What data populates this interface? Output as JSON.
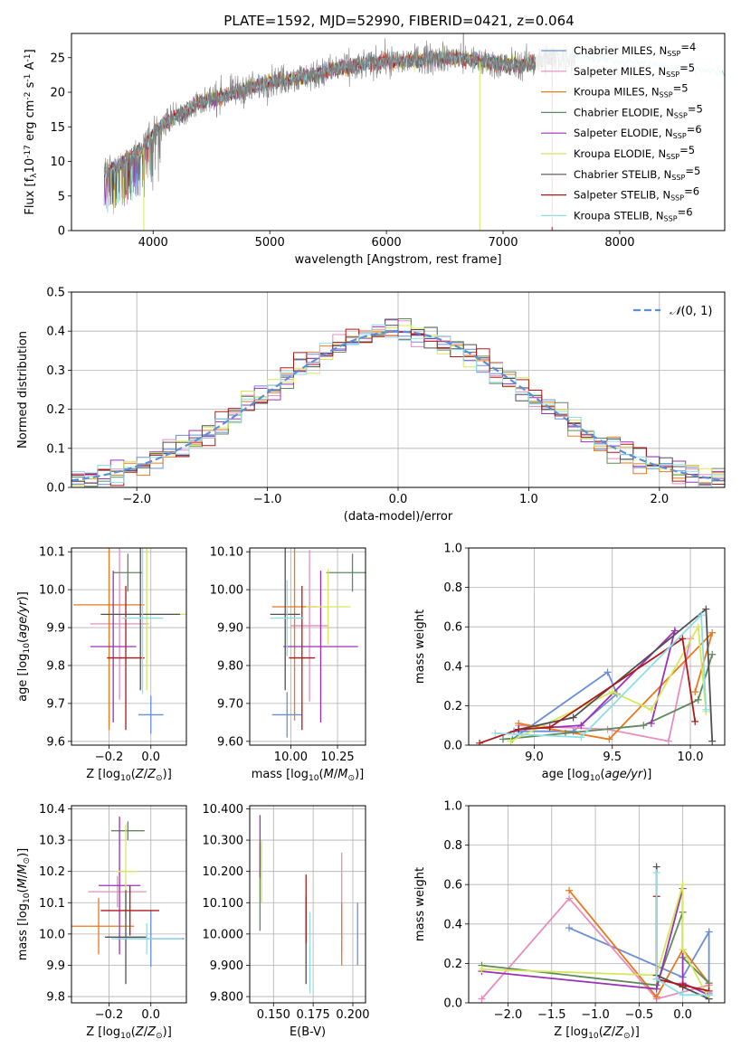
{
  "figure_title": "PLATE=1592, MJD=52990, FIBERID=0421, z=0.064",
  "colors": {
    "chabrier_miles": "#6a8fd8",
    "salpeter_miles": "#e88dbd",
    "kroupa_miles": "#e8791c",
    "chabrier_elodie": "#5c8a5c",
    "salpeter_elodie": "#9b30b8",
    "kroupa_elodie": "#d4e85a",
    "chabrier_stelib": "#505050",
    "salpeter_stelib": "#b01818",
    "kroupa_stelib": "#8fdde5",
    "gaussian": "#5b8fd9"
  },
  "chart_data": [
    {
      "id": "spectrum",
      "type": "line",
      "xlabel": "wavelength [Angstrom, rest frame]",
      "ylabel": "Flux [f$_\\lambda$10$^{-17}$ erg cm$^{-2}$ s$^{-1}$ A$^{-1}$]",
      "xlim": [
        3300,
        8900
      ],
      "ylim": [
        0,
        28.5
      ],
      "xticks": [
        4000,
        5000,
        6000,
        7000,
        8000
      ],
      "yticks": [
        0,
        5,
        10,
        15,
        20,
        25
      ],
      "grid": false,
      "legend_position": "right",
      "legend": [
        {
          "key": "chabrier_miles",
          "label": "Chabrier MILES, N",
          "sub": "SSP",
          "suffix": "=4"
        },
        {
          "key": "salpeter_miles",
          "label": "Salpeter MILES, N",
          "sub": "SSP",
          "suffix": "=5"
        },
        {
          "key": "kroupa_miles",
          "label": "Kroupa MILES, N",
          "sub": "SSP",
          "suffix": "=5"
        },
        {
          "key": "chabrier_elodie",
          "label": "Chabrier ELODIE, N",
          "sub": "SSP",
          "suffix": "=5"
        },
        {
          "key": "salpeter_elodie",
          "label": "Salpeter ELODIE, N",
          "sub": "SSP",
          "suffix": "=6"
        },
        {
          "key": "kroupa_elodie",
          "label": "Kroupa ELODIE, N",
          "sub": "SSP",
          "suffix": "=5"
        },
        {
          "key": "chabrier_stelib",
          "label": "Chabrier STELIB, N",
          "sub": "SSP",
          "suffix": "=5"
        },
        {
          "key": "salpeter_stelib",
          "label": "Salpeter STELIB, N",
          "sub": "SSP",
          "suffix": "=6"
        },
        {
          "key": "kroupa_stelib",
          "label": "Kroupa STELIB, N",
          "sub": "SSP",
          "suffix": "=6"
        }
      ],
      "data_trend": {
        "x": [
          3580,
          3700,
          3800,
          3900,
          4000,
          4100,
          4200,
          4300,
          4400,
          4500,
          4600,
          4700,
          4800,
          4900,
          5000,
          5200,
          5400,
          5600,
          5800,
          6000,
          6200,
          6400,
          6600,
          6800,
          7000,
          7200,
          7400
        ],
        "y": [
          8.5,
          9.5,
          10.5,
          11.5,
          14.0,
          15.5,
          16.5,
          17.5,
          18.5,
          19.0,
          19.5,
          20.0,
          20.5,
          21.0,
          21.5,
          22.0,
          22.5,
          23.5,
          24.0,
          24.5,
          24.5,
          25.0,
          25.0,
          24.5,
          24.0,
          24.0,
          25.0
        ]
      },
      "model_extent": {
        "x": [
          3580,
          8900
        ]
      }
    },
    {
      "id": "residuals",
      "type": "histogram",
      "xlabel": "(data-model)/error",
      "ylabel": "Normed distribution",
      "xlim": [
        -2.5,
        2.5
      ],
      "ylim": [
        0,
        0.5
      ],
      "xticks": [
        -2,
        -1,
        0,
        1,
        2
      ],
      "yticks": [
        0.0,
        0.1,
        0.2,
        0.3,
        0.4,
        0.5
      ],
      "grid": true,
      "legend": [
        {
          "label": "$\\mathcal{N}(0,1)$",
          "key": "gaussian",
          "style": "dashed"
        }
      ],
      "legend_position": "top-right",
      "bin_width": 0.1,
      "gaussian": {
        "mean": 0,
        "sigma": 1
      }
    },
    {
      "id": "age_vs_Z",
      "type": "errorbar",
      "xlabel": "Z [log$_{10}$($Z$/$Z_\\odot$)]",
      "ylabel": "age  [log$_{10}$($age/yr$)]",
      "xlim": [
        -0.38,
        0.17
      ],
      "ylim": [
        9.59,
        10.11
      ],
      "xticks": [
        -0.2,
        0.0
      ],
      "yticks": [
        9.6,
        9.7,
        9.8,
        9.9,
        10.0,
        10.1
      ],
      "grid": true,
      "series": [
        {
          "key": "chabrier_miles",
          "x": 0.0,
          "xerr": 0.06,
          "y": 9.67,
          "yerr": 0.05
        },
        {
          "key": "salpeter_miles",
          "x": -0.15,
          "xerr": 0.14,
          "y": 9.91,
          "yerr": 0.2
        },
        {
          "key": "kroupa_miles",
          "x": -0.2,
          "xerr": 0.17,
          "y": 9.96,
          "yerr": 0.33
        },
        {
          "key": "chabrier_elodie",
          "x": -0.11,
          "xerr": 0.07,
          "y": 10.045,
          "yerr": 0.05
        },
        {
          "key": "salpeter_elodie",
          "x": -0.18,
          "xerr": 0.11,
          "y": 9.85,
          "yerr": 0.2
        },
        {
          "key": "kroupa_elodie",
          "x": -0.02,
          "xerr": 0.19,
          "y": 9.935,
          "yerr": 0.2
        },
        {
          "key": "chabrier_stelib",
          "x": -0.05,
          "xerr": 0.19,
          "y": 9.935,
          "yerr": 0.2
        },
        {
          "key": "salpeter_stelib",
          "x": -0.12,
          "xerr": 0.09,
          "y": 9.82,
          "yerr": 0.19
        },
        {
          "key": "kroupa_stelib",
          "x": -0.04,
          "xerr": 0.1,
          "y": 9.925,
          "yerr": 0.2
        }
      ]
    },
    {
      "id": "age_vs_mass",
      "type": "errorbar",
      "xlabel": "mass [log$_{10}$($M$/$M_\\odot$)]",
      "ylabel": "",
      "xlim": [
        9.78,
        10.4
      ],
      "ylim": [
        9.59,
        10.11
      ],
      "xticks": [
        10.0,
        10.25
      ],
      "yticks": [
        9.6,
        9.7,
        9.8,
        9.9,
        10.0,
        10.1
      ],
      "grid": true,
      "series": [
        {
          "key": "chabrier_miles",
          "x": 9.98,
          "xerr": 0.08,
          "y": 9.67,
          "yerr": 0.06
        },
        {
          "key": "salpeter_miles",
          "x": 10.1,
          "xerr": 0.1,
          "y": 9.905,
          "yerr": 0.2
        },
        {
          "key": "kroupa_miles",
          "x": 10.02,
          "xerr": 0.12,
          "y": 9.955,
          "yerr": 0.3
        },
        {
          "key": "chabrier_elodie",
          "x": 10.33,
          "xerr": 0.14,
          "y": 10.045,
          "yerr": 0.05
        },
        {
          "key": "salpeter_elodie",
          "x": 10.16,
          "xerr": 0.2,
          "y": 9.85,
          "yerr": 0.2
        },
        {
          "key": "kroupa_elodie",
          "x": 10.2,
          "xerr": 0.12,
          "y": 9.955,
          "yerr": 0.1
        },
        {
          "key": "chabrier_stelib",
          "x": 9.97,
          "xerr": 0.08,
          "y": 9.935,
          "yerr": 0.2
        },
        {
          "key": "salpeter_stelib",
          "x": 10.06,
          "xerr": 0.07,
          "y": 9.82,
          "yerr": 0.19
        },
        {
          "key": "kroupa_stelib",
          "x": 9.98,
          "xerr": 0.09,
          "y": 9.925,
          "yerr": 0.1
        }
      ]
    },
    {
      "id": "weight_vs_age",
      "type": "line",
      "xlabel": "age  [log$_{10}$($age/yr$)]",
      "ylabel": "mass weight",
      "xlim": [
        8.58,
        10.22
      ],
      "ylim": [
        0,
        1.0
      ],
      "xticks": [
        9.0,
        9.5,
        10.0
      ],
      "yticks": [
        0.0,
        0.2,
        0.4,
        0.6,
        0.8,
        1.0
      ],
      "grid": true,
      "series": [
        {
          "key": "chabrier_miles",
          "points": [
            [
              8.86,
              0.03
            ],
            [
              9.47,
              0.37
            ],
            [
              9.53,
              0.26
            ],
            [
              9.25,
              0.07
            ],
            [
              8.87,
              0.07
            ]
          ]
        },
        {
          "key": "salpeter_miles",
          "points": [
            [
              8.9,
              0.1
            ],
            [
              9.47,
              0.08
            ],
            [
              9.86,
              0.02
            ],
            [
              10.0,
              0.54
            ]
          ]
        },
        {
          "key": "kroupa_miles",
          "points": [
            [
              8.9,
              0.11
            ],
            [
              9.48,
              0.03
            ],
            [
              10.14,
              0.57
            ],
            [
              10.03,
              0.27
            ]
          ]
        },
        {
          "key": "chabrier_elodie",
          "points": [
            [
              8.8,
              0.03
            ],
            [
              9.2,
              0.06
            ],
            [
              9.7,
              0.1
            ],
            [
              10.05,
              0.23
            ],
            [
              10.14,
              0.46
            ]
          ]
        },
        {
          "key": "salpeter_elodie",
          "points": [
            [
              8.9,
              0.08
            ],
            [
              9.3,
              0.1
            ],
            [
              9.9,
              0.58
            ],
            [
              9.75,
              0.11
            ]
          ]
        },
        {
          "key": "kroupa_elodie",
          "points": [
            [
              8.85,
              0.02
            ],
            [
              9.5,
              0.27
            ],
            [
              9.75,
              0.18
            ],
            [
              10.05,
              0.6
            ],
            [
              10.1,
              0.17
            ]
          ]
        },
        {
          "key": "chabrier_stelib",
          "points": [
            [
              8.9,
              0.08
            ],
            [
              9.25,
              0.14
            ],
            [
              10.1,
              0.69
            ],
            [
              10.14,
              0.02
            ]
          ]
        },
        {
          "key": "salpeter_stelib",
          "points": [
            [
              8.65,
              0.01
            ],
            [
              8.9,
              0.08
            ],
            [
              9.1,
              0.09
            ],
            [
              9.95,
              0.54
            ],
            [
              10.03,
              0.12
            ]
          ]
        },
        {
          "key": "kroupa_stelib",
          "points": [
            [
              8.75,
              0.06
            ],
            [
              9.3,
              0.04
            ],
            [
              10.07,
              0.66
            ],
            [
              10.1,
              0.18
            ]
          ]
        }
      ]
    },
    {
      "id": "mass_vs_Z",
      "type": "errorbar",
      "xlabel": "Z [log$_{10}$($Z$/$Z_\\odot$)]",
      "ylabel": "mass [log$_{10}$($M$/$M_\\odot$)]",
      "xlim": [
        -0.38,
        0.17
      ],
      "ylim": [
        9.78,
        10.41
      ],
      "xticks": [
        -0.2,
        0.0
      ],
      "yticks": [
        9.8,
        9.9,
        10.0,
        10.1,
        10.2,
        10.3,
        10.4
      ],
      "grid": true,
      "series": [
        {
          "key": "chabrier_miles",
          "x": 0.0,
          "xerr": 0.16,
          "y": 9.985,
          "yerr": 0.09
        },
        {
          "key": "salpeter_miles",
          "x": -0.16,
          "xerr": 0.14,
          "y": 10.135,
          "yerr": 0.05
        },
        {
          "key": "kroupa_miles",
          "x": -0.25,
          "xerr": 0.17,
          "y": 10.025,
          "yerr": 0.09
        },
        {
          "key": "chabrier_elodie",
          "x": -0.11,
          "xerr": 0.08,
          "y": 10.33,
          "yerr": 0.03
        },
        {
          "key": "salpeter_elodie",
          "x": -0.15,
          "xerr": 0.1,
          "y": 10.155,
          "yerr": 0.22
        },
        {
          "key": "kroupa_elodie",
          "x": -0.12,
          "xerr": 0.05,
          "y": 10.2,
          "yerr": 0.15
        },
        {
          "key": "chabrier_stelib",
          "x": -0.12,
          "xerr": 0.1,
          "y": 9.99,
          "yerr": 0.15
        },
        {
          "key": "salpeter_stelib",
          "x": -0.1,
          "xerr": 0.14,
          "y": 10.075,
          "yerr": 0.08
        },
        {
          "key": "kroupa_stelib",
          "x": -0.02,
          "xerr": 0.17,
          "y": 9.985,
          "yerr": 0.05
        }
      ]
    },
    {
      "id": "mass_vs_ebv",
      "type": "errorbar",
      "xlabel": "E(B-V)",
      "ylabel": "",
      "xlim": [
        0.135,
        0.208
      ],
      "ylim": [
        9.78,
        10.41
      ],
      "xticks": [
        0.15,
        0.175,
        0.2
      ],
      "yticks": [
        9.8,
        9.9,
        10.0,
        10.1,
        10.2,
        10.3,
        10.4
      ],
      "grid": true,
      "series": [
        {
          "key": "chabrier_miles",
          "x": 0.203,
          "y": 10.0,
          "yerr": 0.1
        },
        {
          "key": "salpeter_miles",
          "x": 0.193,
          "y": 10.1,
          "yerr": 0.16
        },
        {
          "key": "kroupa_miles",
          "x": 0.193,
          "y": 10.0,
          "yerr": 0.1
        },
        {
          "key": "chabrier_elodie",
          "x": 0.1415,
          "y": 10.15,
          "yerr": 0.14
        },
        {
          "key": "salpeter_elodie",
          "x": 0.1415,
          "y": 10.28,
          "yerr": 0.1
        },
        {
          "key": "kroupa_elodie",
          "x": 0.1425,
          "y": 10.2,
          "yerr": 0.1
        },
        {
          "key": "chabrier_stelib",
          "x": 0.1705,
          "y": 9.98,
          "yerr": 0.14
        },
        {
          "key": "salpeter_stelib",
          "x": 0.1705,
          "y": 10.08,
          "yerr": 0.11
        },
        {
          "key": "kroupa_stelib",
          "x": 0.173,
          "y": 9.94,
          "yerr": 0.13
        }
      ]
    },
    {
      "id": "weight_vs_Z",
      "type": "line",
      "xlabel": "Z [log$_{10}$($Z$/$Z_\\odot$)]",
      "ylabel": "mass weight",
      "xlim": [
        -2.45,
        0.48
      ],
      "ylim": [
        0,
        1.0
      ],
      "xticks": [
        -2.0,
        -1.5,
        -1.0,
        -0.5,
        0.0
      ],
      "yticks": [
        0.0,
        0.2,
        0.4,
        0.6,
        0.8,
        1.0
      ],
      "grid": true,
      "series": [
        {
          "key": "chabrier_miles",
          "points": [
            [
              -1.3,
              0.38
            ],
            [
              0.0,
              0.13
            ],
            [
              0.3,
              0.36
            ],
            [
              0.3,
              0.05
            ]
          ]
        },
        {
          "key": "salpeter_miles",
          "points": [
            [
              -2.3,
              0.02
            ],
            [
              -1.3,
              0.53
            ],
            [
              -0.3,
              0.02
            ],
            [
              0.3,
              0.09
            ]
          ]
        },
        {
          "key": "kroupa_miles",
          "points": [
            [
              -1.3,
              0.57
            ],
            [
              -0.3,
              0.03
            ],
            [
              0.0,
              0.27
            ],
            [
              0.3,
              0.1
            ],
            [
              0.3,
              0.04
            ]
          ]
        },
        {
          "key": "chabrier_elodie",
          "points": [
            [
              -2.3,
              0.19
            ],
            [
              -0.3,
              0.09
            ],
            [
              0.0,
              0.46
            ],
            [
              0.0,
              0.23
            ],
            [
              0.3,
              0.1
            ]
          ]
        },
        {
          "key": "salpeter_elodie",
          "points": [
            [
              -2.3,
              0.16
            ],
            [
              -0.3,
              0.07
            ],
            [
              0.0,
              0.58
            ],
            [
              0.0,
              0.1
            ],
            [
              0.3,
              0.04
            ]
          ]
        },
        {
          "key": "kroupa_elodie",
          "points": [
            [
              -2.3,
              0.17
            ],
            [
              -0.3,
              0.14
            ],
            [
              0.0,
              0.6
            ],
            [
              0.0,
              0.27
            ],
            [
              0.3,
              0.02
            ]
          ]
        },
        {
          "key": "chabrier_stelib",
          "points": [
            [
              -0.3,
              0.69
            ],
            [
              -0.3,
              0.14
            ],
            [
              0.0,
              0.08
            ],
            [
              0.3,
              0.02
            ]
          ]
        },
        {
          "key": "salpeter_stelib",
          "points": [
            [
              -0.3,
              0.54
            ],
            [
              -0.3,
              0.12
            ],
            [
              0.0,
              0.09
            ],
            [
              0.3,
              0.06
            ]
          ]
        },
        {
          "key": "kroupa_stelib",
          "points": [
            [
              -0.3,
              0.66
            ],
            [
              -0.3,
              0.12
            ],
            [
              0.0,
              0.04
            ],
            [
              0.3,
              0.04
            ]
          ]
        }
      ]
    }
  ]
}
